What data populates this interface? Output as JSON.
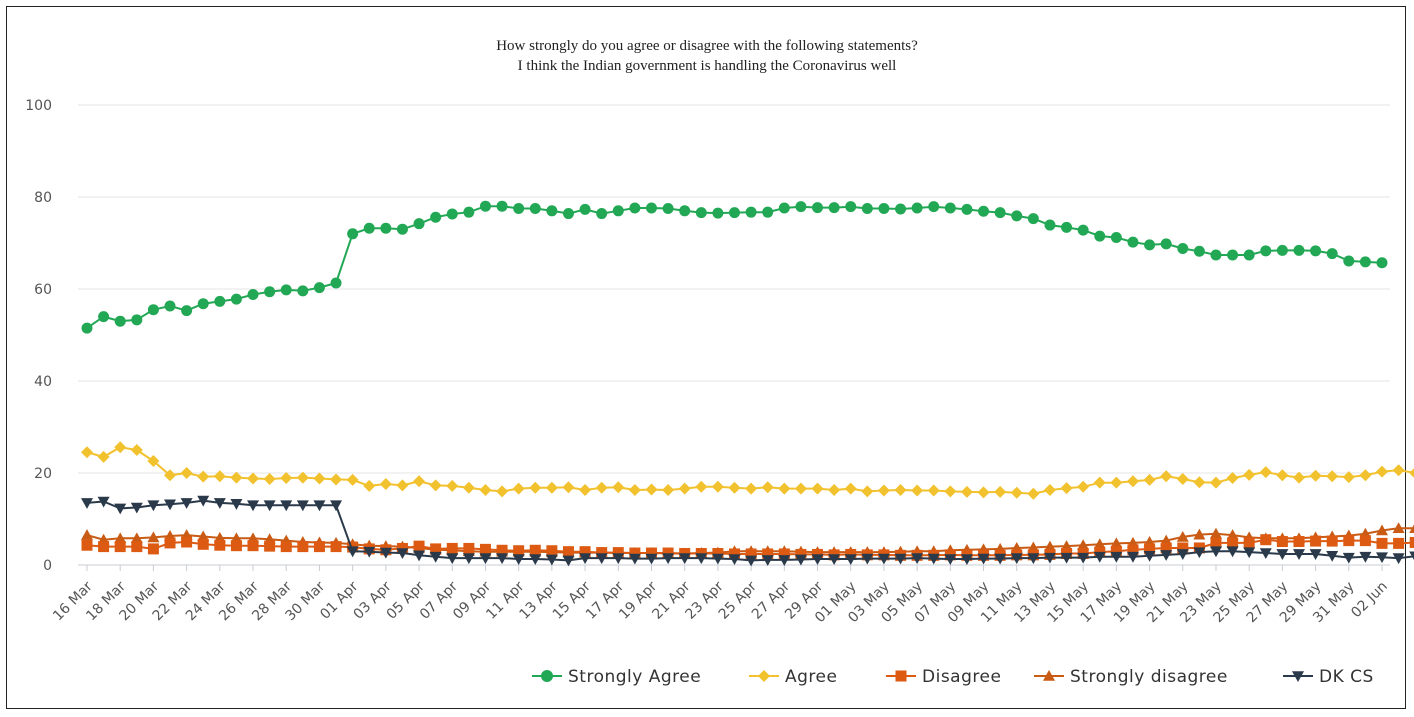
{
  "chart_data": {
    "type": "line",
    "title": "How strongly do you agree or disagree with the following statements?",
    "subtitle": "I think the Indian government is handling the Coronavirus well",
    "xlabel": "",
    "ylabel": "",
    "ylim": [
      0,
      100
    ],
    "yticks": [
      "0",
      "20",
      "40",
      "60",
      "80",
      "100"
    ],
    "grid": true,
    "legend_position": "bottom-right",
    "x_tick_labels": [
      "16 Mar",
      "18 Mar",
      "20 Mar",
      "22 Mar",
      "24 Mar",
      "26 Mar",
      "28 Mar",
      "30 Mar",
      "01 Apr",
      "03 Apr",
      "05 Apr",
      "07 Apr",
      "09 Apr",
      "11 Apr",
      "13 Apr",
      "15 Apr",
      "17 Apr",
      "19 Apr",
      "21 Apr",
      "23 Apr",
      "25 Apr",
      "27 Apr",
      "29 Apr",
      "01 May",
      "03 May",
      "05 May",
      "07 May",
      "09 May",
      "11 May",
      "13 May",
      "15 May",
      "17 May",
      "19 May",
      "21 May",
      "23 May",
      "25 May",
      "27 May",
      "29 May",
      "31 May",
      "02 Jun"
    ],
    "series": [
      {
        "name": "Strongly Agree",
        "color": "#22a855",
        "marker": "circle",
        "values": [
          51.5,
          54,
          53,
          53.3,
          55.5,
          56.3,
          55.3,
          56.8,
          57.3,
          57.8,
          58.8,
          59.4,
          59.8,
          59.6,
          60.3,
          61.3,
          72,
          73.2,
          73.2,
          73,
          74.2,
          75.6,
          76.3,
          76.7,
          78,
          78,
          77.5,
          77.5,
          77,
          76.4,
          77.3,
          76.4,
          77,
          77.6,
          77.6,
          77.5,
          77,
          76.6,
          76.5,
          76.6,
          76.7,
          76.7,
          77.6,
          77.9,
          77.7,
          77.7,
          77.9,
          77.5,
          77.5,
          77.4,
          77.6,
          77.9,
          77.6,
          77.3,
          76.9,
          76.6,
          75.9,
          75.3,
          73.9,
          73.4,
          72.8,
          71.5,
          71.2,
          70.2,
          69.6,
          69.8,
          68.8,
          68.2,
          67.4,
          67.4,
          67.4,
          68.3,
          68.4,
          68.4,
          68.3,
          67.7,
          66.1,
          65.9,
          65.7
        ]
      },
      {
        "name": "Agree",
        "color": "#f2c12e",
        "marker": "diamond",
        "values": [
          24.5,
          23.5,
          25.6,
          25,
          22.6,
          19.5,
          20,
          19.2,
          19.3,
          19,
          18.8,
          18.7,
          18.9,
          19,
          18.8,
          18.6,
          18.5,
          17.2,
          17.6,
          17.3,
          18.2,
          17.3,
          17.2,
          16.8,
          16.3,
          16,
          16.6,
          16.8,
          16.8,
          16.9,
          16.3,
          16.8,
          16.9,
          16.3,
          16.4,
          16.3,
          16.6,
          17,
          17,
          16.8,
          16.6,
          16.9,
          16.6,
          16.6,
          16.6,
          16.3,
          16.6,
          16,
          16.2,
          16.3,
          16.2,
          16.2,
          16,
          15.9,
          15.8,
          15.9,
          15.7,
          15.5,
          16.3,
          16.7,
          17,
          17.9,
          17.9,
          18.2,
          18.5,
          19.3,
          18.7,
          18,
          17.9,
          18.9,
          19.6,
          20.2,
          19.5,
          19,
          19.4,
          19.3,
          19.1,
          19.5,
          20.3,
          20.6,
          20
        ]
      },
      {
        "name": "Disagree",
        "color": "#dd5a12",
        "marker": "square",
        "values": [
          4.3,
          4,
          4,
          4,
          3.5,
          4.8,
          5,
          4.5,
          4.3,
          4.2,
          4.2,
          4.1,
          4,
          4,
          4,
          4,
          3.9,
          3.5,
          3.3,
          3.6,
          4.1,
          3.5,
          3.6,
          3.6,
          3.4,
          3.2,
          3.1,
          3.2,
          3.1,
          2.9,
          2.9,
          2.7,
          2.7,
          2.6,
          2.6,
          2.6,
          2.5,
          2.5,
          2.5,
          2.4,
          2.4,
          2.4,
          2.4,
          2.3,
          2.3,
          2.2,
          2.3,
          2.2,
          2.2,
          2.1,
          2.1,
          2.1,
          2.2,
          2.1,
          2.1,
          2.1,
          2.2,
          2.2,
          2.3,
          2.5,
          2.5,
          2.8,
          3,
          3.3,
          3.5,
          3.7,
          3.7,
          3.7,
          4.8,
          4.8,
          4.8,
          5.5,
          5.1,
          5.1,
          5.2,
          5.2,
          5.3,
          5.3,
          4.7,
          4.7,
          4.9
        ]
      },
      {
        "name": "Strongly disagree",
        "color": "#c95b14",
        "marker": "triangle-up",
        "values": [
          6.5,
          5.5,
          5.8,
          5.8,
          6,
          6.3,
          6.5,
          6.2,
          5.9,
          5.8,
          5.8,
          5.6,
          5.3,
          5,
          4.9,
          4.8,
          4.5,
          4.2,
          4.1,
          4,
          3.7,
          3.3,
          3.2,
          3,
          2.9,
          2.9,
          2.9,
          2.9,
          2.8,
          2.7,
          2.7,
          2.7,
          2.6,
          2.6,
          2.6,
          2.5,
          2.5,
          2.6,
          2.7,
          3,
          3,
          3,
          3,
          2.9,
          2.8,
          2.8,
          2.8,
          2.8,
          2.8,
          2.9,
          3,
          3,
          3.2,
          3.3,
          3.4,
          3.5,
          3.7,
          3.8,
          4,
          4.1,
          4.3,
          4.5,
          4.7,
          4.8,
          5,
          5.3,
          6.1,
          6.6,
          6.8,
          6.5,
          6,
          5.8,
          5.8,
          5.8,
          6,
          6.2,
          6.4,
          6.8,
          7.5,
          8,
          8
        ]
      },
      {
        "name": "DK CS",
        "color": "#2b3a4a",
        "marker": "triangle-down",
        "values": [
          13.5,
          13.8,
          12.3,
          12.5,
          13,
          13.2,
          13.5,
          14,
          13.5,
          13.3,
          13,
          13,
          13,
          13,
          13,
          13,
          3,
          2.9,
          2.7,
          2.6,
          2.1,
          1.8,
          1.5,
          1.5,
          1.5,
          1.5,
          1.3,
          1.3,
          1.2,
          1,
          1.5,
          1.5,
          1.5,
          1.4,
          1.4,
          1.5,
          1.5,
          1.5,
          1.4,
          1.3,
          1,
          1.1,
          1.1,
          1.2,
          1.3,
          1.3,
          1.3,
          1.4,
          1.4,
          1.4,
          1.5,
          1.4,
          1.3,
          1.3,
          1.4,
          1.4,
          1.5,
          1.5,
          1.6,
          1.6,
          1.6,
          1.8,
          1.8,
          1.8,
          2,
          2.2,
          2.4,
          2.8,
          3,
          3,
          2.8,
          2.6,
          2.4,
          2.4,
          2.4,
          2,
          1.6,
          1.8,
          1.7,
          1.5,
          1.9
        ]
      }
    ]
  }
}
